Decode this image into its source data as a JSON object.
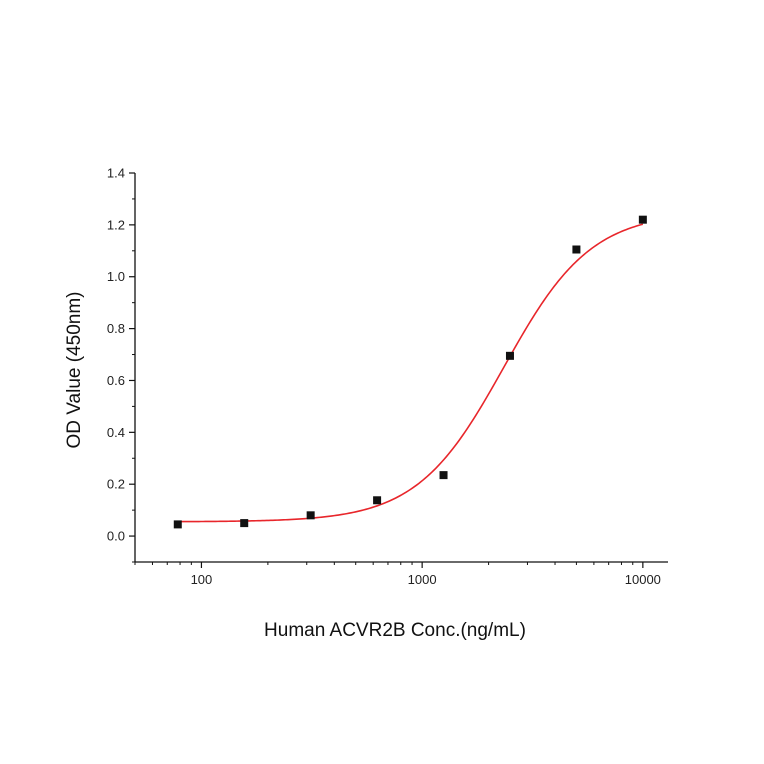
{
  "chart_data": {
    "type": "scatter",
    "title": "",
    "xlabel": "Human ACVR2B Conc.(ng/mL)",
    "ylabel": "OD Value (450nm)",
    "xscale": "log",
    "xlim": [
      50,
      13000
    ],
    "ylim": [
      -0.1,
      1.4
    ],
    "xticks": [
      100,
      1000,
      10000
    ],
    "xtick_labels": [
      "100",
      "1000",
      "10000"
    ],
    "yticks": [
      0.0,
      0.2,
      0.4,
      0.6,
      0.8,
      1.0,
      1.2,
      1.4
    ],
    "ytick_labels": [
      "0.0",
      "0.2",
      "0.4",
      "0.6",
      "0.8",
      "1.0",
      "1.2",
      "1.4"
    ],
    "grid": false,
    "legend": "none",
    "point_color": "#111111",
    "fit_color": "#e8262b",
    "points": {
      "x": [
        78.125,
        156.25,
        312.5,
        625,
        1250,
        2500,
        5000,
        10000
      ],
      "y": [
        0.045,
        0.05,
        0.08,
        0.138,
        0.235,
        0.695,
        1.105,
        1.22
      ]
    },
    "fit_curve": {
      "model": "4PL",
      "bottom": 0.055,
      "top": 1.25,
      "ec50": 2350,
      "hill": 2.2
    }
  }
}
